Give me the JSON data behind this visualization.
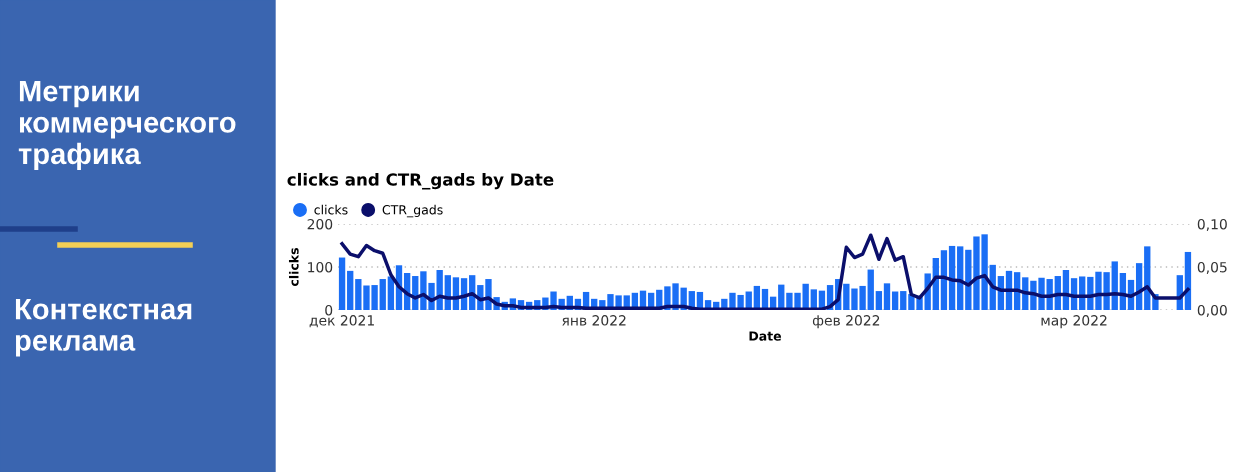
{
  "chart_data": {
    "type": "bar",
    "title": "clicks and CTR_gads by Date",
    "xlabel": "Date",
    "ylabel": "clicks",
    "annotations": [
      "Метрики\nкоммерческого\nтрафика",
      "Контекстная\nреклама"
    ],
    "x": [
      "2021-12-01",
      "2021-12-02",
      "2021-12-03",
      "2021-12-04",
      "2021-12-05",
      "2021-12-06",
      "2021-12-07",
      "2021-12-08",
      "2021-12-09",
      "2021-12-10",
      "2021-12-11",
      "2021-12-12",
      "2021-12-13",
      "2021-12-14",
      "2021-12-15",
      "2021-12-16",
      "2021-12-17",
      "2021-12-18",
      "2021-12-19",
      "2021-12-20",
      "2021-12-21",
      "2021-12-22",
      "2021-12-23",
      "2021-12-24",
      "2021-12-25",
      "2021-12-26",
      "2021-12-27",
      "2021-12-28",
      "2021-12-29",
      "2021-12-30",
      "2021-12-31",
      "2022-01-01",
      "2022-01-02",
      "2022-01-03",
      "2022-01-04",
      "2022-01-05",
      "2022-01-06",
      "2022-01-07",
      "2022-01-08",
      "2022-01-09",
      "2022-01-10",
      "2022-01-11",
      "2022-01-12",
      "2022-01-13",
      "2022-01-14",
      "2022-01-15",
      "2022-01-16",
      "2022-01-17",
      "2022-01-18",
      "2022-01-19",
      "2022-01-20",
      "2022-01-21",
      "2022-01-22",
      "2022-01-23",
      "2022-01-24",
      "2022-01-25",
      "2022-01-26",
      "2022-01-27",
      "2022-01-28",
      "2022-01-29",
      "2022-01-30",
      "2022-01-31",
      "2022-02-01",
      "2022-02-02",
      "2022-02-03",
      "2022-02-04",
      "2022-02-05",
      "2022-02-06",
      "2022-02-07",
      "2022-02-08",
      "2022-02-09",
      "2022-02-10",
      "2022-02-11",
      "2022-02-12",
      "2022-02-13",
      "2022-02-14",
      "2022-02-15",
      "2022-02-16",
      "2022-02-17",
      "2022-02-18",
      "2022-02-19",
      "2022-02-20",
      "2022-02-21",
      "2022-02-22",
      "2022-02-23",
      "2022-02-24",
      "2022-02-25",
      "2022-02-26",
      "2022-02-27",
      "2022-02-28",
      "2022-03-01",
      "2022-03-02",
      "2022-03-03",
      "2022-03-04",
      "2022-03-05",
      "2022-03-06",
      "2022-03-07",
      "2022-03-08",
      "2022-03-09",
      "2022-03-10",
      "2022-03-11",
      "2022-03-12",
      "2022-03-13",
      "2022-03-14",
      "2022-03-15"
    ],
    "series": [
      {
        "name": "clicks",
        "color": "#1a6ef5",
        "values": [
          122,
          91,
          72,
          57,
          58,
          72,
          78,
          104,
          86,
          79,
          90,
          63,
          93,
          81,
          76,
          74,
          81,
          58,
          72,
          30,
          19,
          27,
          23,
          19,
          23,
          29,
          43,
          26,
          33,
          26,
          42,
          26,
          23,
          37,
          34,
          34,
          40,
          45,
          40,
          47,
          55,
          62,
          52,
          44,
          42,
          23,
          19,
          26,
          40,
          35,
          43,
          56,
          49,
          31,
          59,
          40,
          40,
          61,
          48,
          45,
          58,
          72,
          61,
          50,
          56,
          94,
          44,
          62,
          43,
          44,
          37,
          33,
          85,
          121,
          139,
          149,
          148,
          140,
          171,
          176,
          105,
          79,
          91,
          88,
          76,
          68,
          75,
          72,
          79,
          93,
          74,
          78,
          77,
          89,
          88,
          113,
          86,
          70,
          109,
          148,
          37,
          null,
          null,
          81,
          135
        ]
      },
      {
        "name": "CTR_gads",
        "type": "line",
        "axis": "y2",
        "color": "#0b0f6b",
        "values": [
          0.077,
          0.065,
          0.062,
          0.075,
          0.069,
          0.066,
          0.041,
          0.027,
          0.019,
          0.014,
          0.018,
          0.011,
          0.016,
          0.014,
          0.014,
          0.016,
          0.019,
          0.012,
          0.014,
          0.007,
          0.005,
          0.005,
          0.003,
          0.003,
          0.003,
          0.003,
          0.004,
          0.003,
          0.003,
          0.003,
          0.002,
          0.002,
          0.002,
          0.002,
          0.002,
          0.002,
          0.002,
          0.002,
          0.002,
          0.002,
          0.004,
          0.004,
          0.004,
          0.002,
          0.001,
          0.001,
          0.001,
          0.001,
          0.001,
          0.001,
          0.001,
          0.001,
          0.001,
          0.001,
          0.001,
          0.001,
          0.001,
          0.001,
          0.001,
          0.001,
          0.004,
          0.012,
          0.073,
          0.061,
          0.065,
          0.087,
          0.059,
          0.083,
          0.058,
          0.062,
          0.018,
          0.014,
          0.025,
          0.038,
          0.038,
          0.035,
          0.034,
          0.029,
          0.037,
          0.04,
          0.027,
          0.023,
          0.023,
          0.023,
          0.02,
          0.019,
          0.016,
          0.016,
          0.018,
          0.018,
          0.016,
          0.016,
          0.016,
          0.018,
          0.018,
          0.019,
          0.018,
          0.016,
          0.021,
          0.027,
          0.014,
          0.014,
          0.014,
          0.014,
          0.024
        ]
      }
    ],
    "xlim": [
      "2021-11-30T12:00",
      "2022-03-15T12:00"
    ],
    "xticks": [
      {
        "value": "2021-12-01",
        "label": "дек 2021"
      },
      {
        "value": "2022-01-01",
        "label": "янв 2022"
      },
      {
        "value": "2022-02-01",
        "label": "фев 2022"
      },
      {
        "value": "2022-03-01",
        "label": "мар 2022"
      }
    ],
    "ylim": [
      0,
      200
    ],
    "yticks": [
      0,
      100,
      200
    ],
    "y2lim": [
      0,
      0.1
    ],
    "y2ticks": [
      {
        "value": 0,
        "label": "0,00"
      },
      {
        "value": 0.05,
        "label": "0,05"
      },
      {
        "value": 0.1,
        "label": "0,10"
      }
    ],
    "grid": "y",
    "legend": "top left"
  }
}
